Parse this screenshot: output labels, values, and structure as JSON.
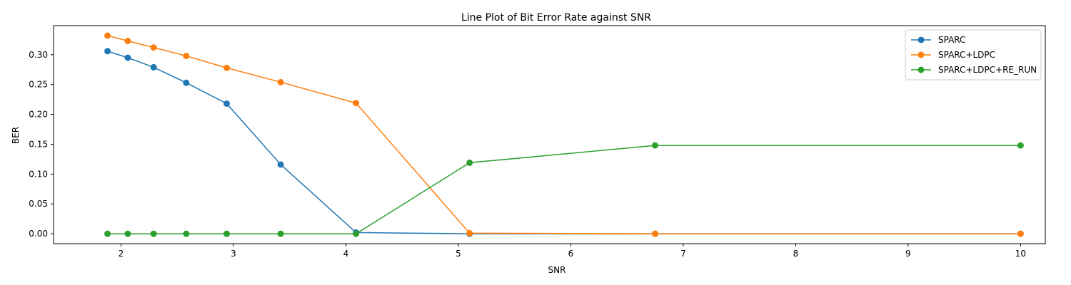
{
  "chart_data": {
    "type": "line",
    "title": "Line Plot of Bit Error Rate against SNR",
    "xlabel": "SNR",
    "ylabel": "BER",
    "xlim": [
      1.4,
      10.22
    ],
    "ylim": [
      -0.0166,
      0.3487
    ],
    "xticks": [
      2,
      3,
      4,
      5,
      6,
      7,
      8,
      9,
      10
    ],
    "yticks": [
      0.0,
      0.05,
      0.1,
      0.15,
      0.2,
      0.25,
      0.3
    ],
    "ytick_labels": [
      "0.00",
      "0.05",
      "0.10",
      "0.15",
      "0.20",
      "0.25",
      "0.30"
    ],
    "x": [
      1.88,
      2.06,
      2.29,
      2.58,
      2.94,
      3.42,
      4.09,
      5.1,
      6.75,
      10.0
    ],
    "series": [
      {
        "name": "SPARC",
        "color": "#1f77b4",
        "values": [
          0.306,
          0.295,
          0.279,
          0.253,
          0.218,
          0.116,
          0.002,
          0.0,
          0.0,
          0.0
        ]
      },
      {
        "name": "SPARC+LDPC",
        "color": "#ff7f0e",
        "values": [
          0.332,
          0.323,
          0.312,
          0.298,
          0.278,
          0.254,
          0.219,
          0.001,
          0.0,
          0.0
        ]
      },
      {
        "name": "SPARC+LDPC+RE_RUN",
        "color": "#2ca02c",
        "values": [
          0.0,
          0.0,
          0.0,
          0.0,
          0.0,
          0.0,
          0.0,
          0.119,
          0.148,
          0.148
        ]
      }
    ],
    "grid": false,
    "legend_position": "upper right"
  }
}
